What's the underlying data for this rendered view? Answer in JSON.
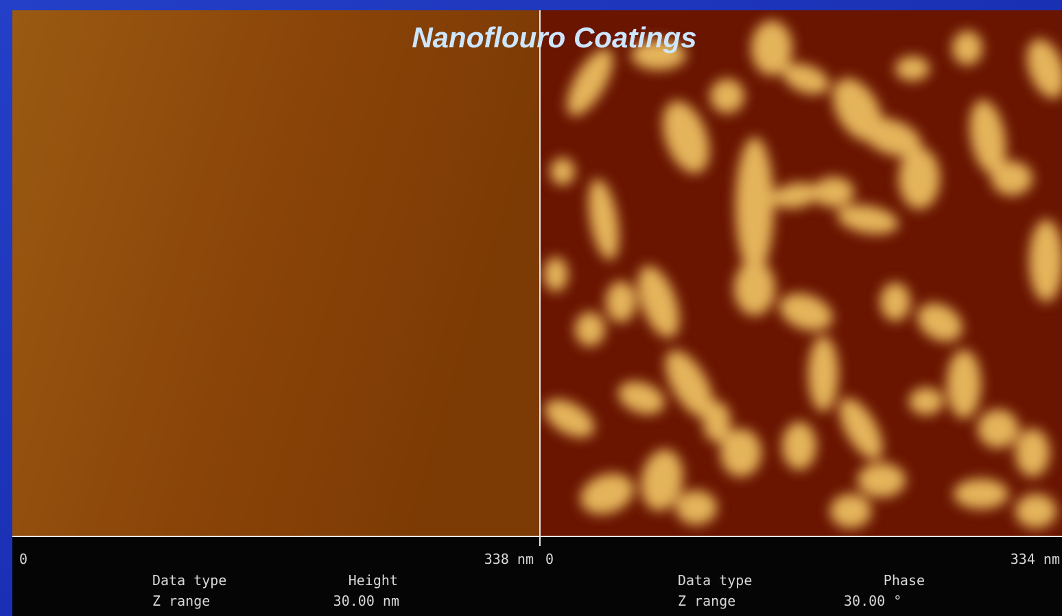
{
  "header": {
    "title": "Nanoflouro Coatings"
  },
  "panels": [
    {
      "scale_start": "0",
      "scale_end": "338 nm",
      "data_type_label": "Data type",
      "data_type": "Height",
      "z_range_label": "Z range",
      "z_range": "30.00 nm"
    },
    {
      "scale_start": "0",
      "scale_end": "334 nm",
      "data_type_label": "Data type",
      "data_type": "Phase",
      "z_range_label": "Z range",
      "z_range": "30.00 °"
    }
  ]
}
